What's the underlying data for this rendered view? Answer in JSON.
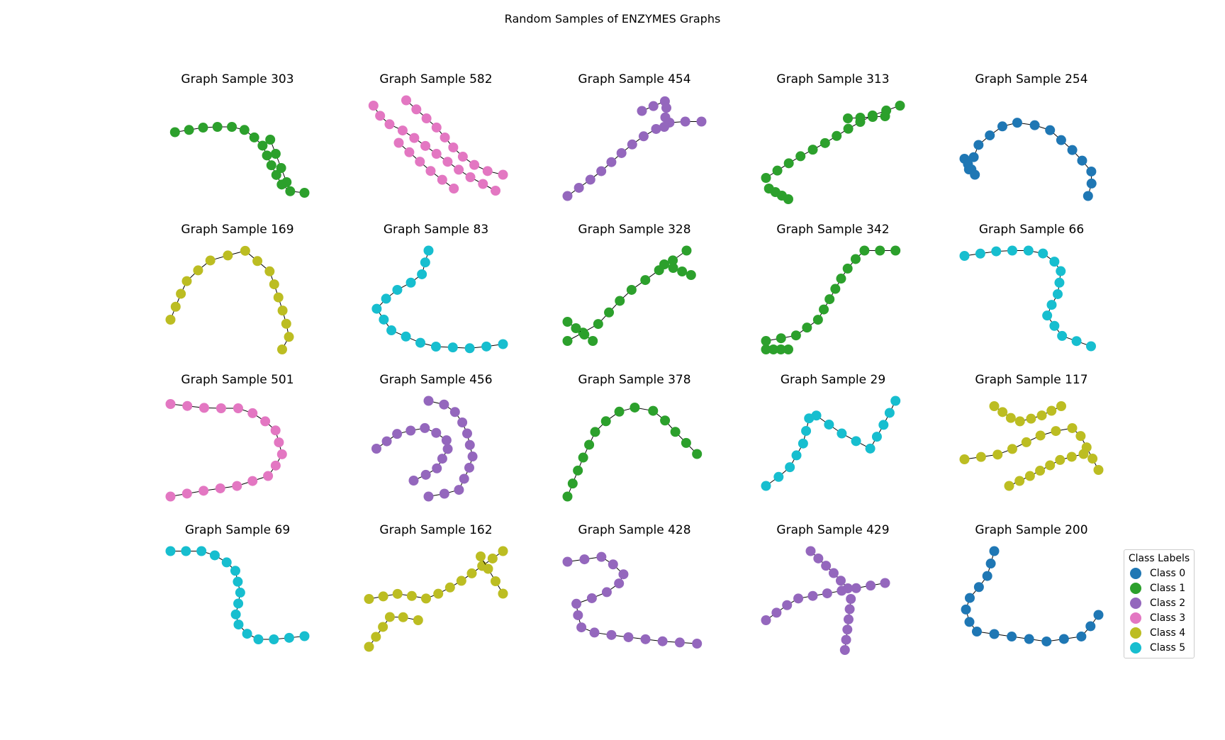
{
  "title": "Random Samples of ENZYMES Graphs",
  "legend": {
    "title": "Class Labels",
    "items": [
      {
        "label": "Class 0",
        "color": "#1f77b4"
      },
      {
        "label": "Class 1",
        "color": "#2ca02c"
      },
      {
        "label": "Class 2",
        "color": "#9467bd"
      },
      {
        "label": "Class 3",
        "color": "#e377c2"
      },
      {
        "label": "Class 4",
        "color": "#bcbd22"
      },
      {
        "label": "Class 5",
        "color": "#17becf"
      }
    ]
  },
  "panels": [
    {
      "title": "Graph Sample 303",
      "color": "#2ca02c"
    },
    {
      "title": "Graph Sample 582",
      "color": "#e377c2"
    },
    {
      "title": "Graph Sample 454",
      "color": "#9467bd"
    },
    {
      "title": "Graph Sample 313",
      "color": "#2ca02c"
    },
    {
      "title": "Graph Sample 254",
      "color": "#1f77b4"
    },
    {
      "title": "Graph Sample 169",
      "color": "#bcbd22"
    },
    {
      "title": "Graph Sample 83",
      "color": "#17becf"
    },
    {
      "title": "Graph Sample 328",
      "color": "#2ca02c"
    },
    {
      "title": "Graph Sample 342",
      "color": "#2ca02c"
    },
    {
      "title": "Graph Sample 66",
      "color": "#17becf"
    },
    {
      "title": "Graph Sample 501",
      "color": "#e377c2"
    },
    {
      "title": "Graph Sample 456",
      "color": "#9467bd"
    },
    {
      "title": "Graph Sample 378",
      "color": "#2ca02c"
    },
    {
      "title": "Graph Sample 29",
      "color": "#17becf"
    },
    {
      "title": "Graph Sample 117",
      "color": "#bcbd22"
    },
    {
      "title": "Graph Sample 69",
      "color": "#17becf"
    },
    {
      "title": "Graph Sample 162",
      "color": "#bcbd22"
    },
    {
      "title": "Graph Sample 428",
      "color": "#9467bd"
    },
    {
      "title": "Graph Sample 429",
      "color": "#9467bd"
    },
    {
      "title": "Graph Sample 200",
      "color": "#1f77b4"
    }
  ]
}
